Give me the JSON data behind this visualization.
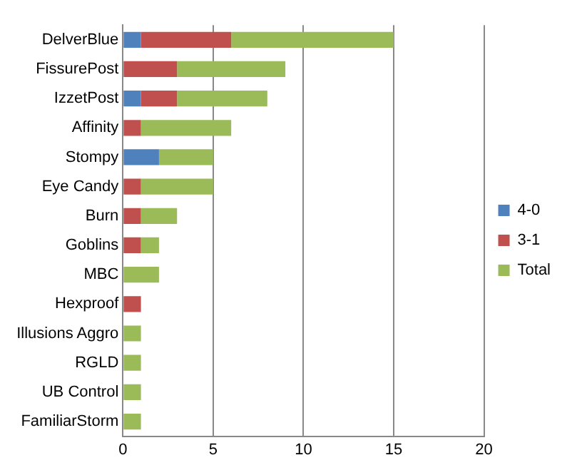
{
  "chart_data": {
    "type": "bar",
    "orientation": "horizontal",
    "stacked": true,
    "categories": [
      "DelverBlue",
      "FissurePost",
      "IzzetPost",
      "Affinity",
      "Stompy",
      "Eye Candy",
      "Burn",
      "Goblins",
      "MBC",
      "Hexproof",
      "Illusions Aggro",
      "RGLD",
      "UB Control",
      "FamiliarStorm"
    ],
    "series": [
      {
        "name": "4-0",
        "color": "#4f81bd",
        "values": [
          1,
          0,
          1,
          0,
          2,
          0,
          0,
          0,
          0,
          0,
          0,
          0,
          0,
          0
        ]
      },
      {
        "name": "3-1",
        "color": "#c0504d",
        "values": [
          5,
          3,
          2,
          1,
          0,
          1,
          1,
          1,
          0,
          1,
          0,
          0,
          0,
          0
        ]
      },
      {
        "name": "Total",
        "color": "#9bbb59",
        "values": [
          9,
          6,
          5,
          5,
          3,
          4,
          2,
          1,
          2,
          0,
          1,
          1,
          1,
          1
        ]
      }
    ],
    "xlim": [
      0,
      20
    ],
    "xticks": [
      0,
      5,
      10,
      15,
      20
    ],
    "grid": "x",
    "legend": "right"
  }
}
